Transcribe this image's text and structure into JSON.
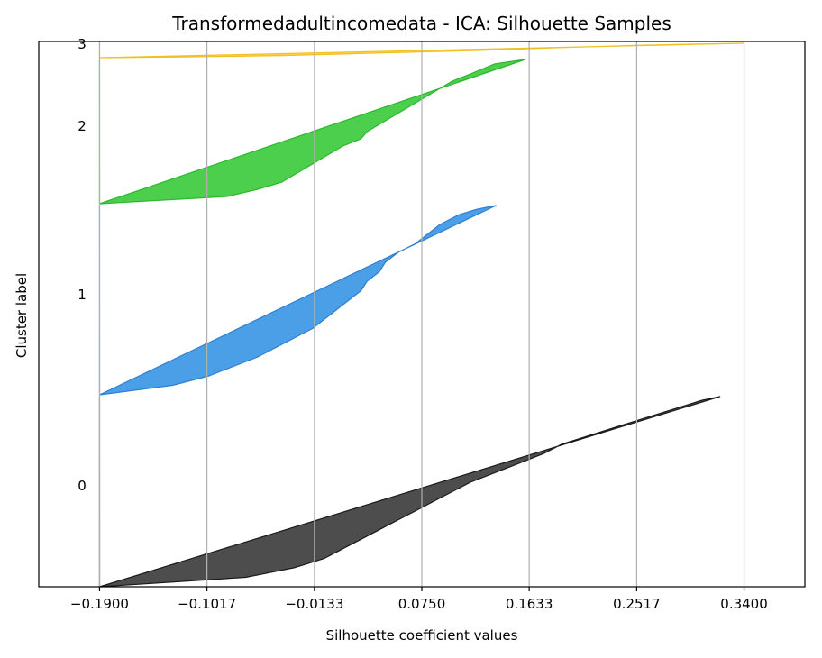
{
  "chart_data": {
    "type": "area",
    "title": "Transformedadultincomedata - ICA: Silhouette Samples",
    "xlabel": "Silhouette coefficient values",
    "ylabel": "Cluster label",
    "xlim": [
      -0.24,
      0.39
    ],
    "x_ticks": [
      -0.19,
      -0.1017,
      -0.0133,
      0.075,
      0.1633,
      0.2517,
      0.34
    ],
    "x_tick_labels": [
      "−0.1900",
      "−0.1017",
      "−0.0133",
      "0.0750",
      "0.1633",
      "0.2517",
      "0.3400"
    ],
    "grid": "vertical",
    "clusters": [
      {
        "label": "0",
        "color": "#4d4d4d",
        "edge_color": "#1a1a1a",
        "profile": [
          [
            0,
            0.32
          ],
          [
            0.02,
            0.305
          ],
          [
            0.05,
            0.29
          ],
          [
            0.1,
            0.265
          ],
          [
            0.15,
            0.24
          ],
          [
            0.2,
            0.215
          ],
          [
            0.25,
            0.19
          ],
          [
            0.3,
            0.175
          ],
          [
            0.35,
            0.155
          ],
          [
            0.4,
            0.135
          ],
          [
            0.45,
            0.115
          ],
          [
            0.5,
            0.1
          ],
          [
            0.55,
            0.085
          ],
          [
            0.6,
            0.07
          ],
          [
            0.65,
            0.055
          ],
          [
            0.7,
            0.04
          ],
          [
            0.75,
            0.025
          ],
          [
            0.8,
            0.01
          ],
          [
            0.85,
            -0.005
          ],
          [
            0.9,
            -0.03
          ],
          [
            0.95,
            -0.07
          ],
          [
            1,
            -0.19
          ]
        ]
      },
      {
        "label": "1",
        "color": "#4a9fe6",
        "edge_color": "#2f7fd0",
        "profile": [
          [
            0,
            0.136
          ],
          [
            0.02,
            0.12
          ],
          [
            0.05,
            0.105
          ],
          [
            0.1,
            0.09
          ],
          [
            0.15,
            0.08
          ],
          [
            0.2,
            0.07
          ],
          [
            0.25,
            0.055
          ],
          [
            0.3,
            0.045
          ],
          [
            0.35,
            0.04
          ],
          [
            0.4,
            0.03
          ],
          [
            0.45,
            0.025
          ],
          [
            0.5,
            0.015
          ],
          [
            0.55,
            0.005
          ],
          [
            0.6,
            -0.005
          ],
          [
            0.65,
            -0.015
          ],
          [
            0.7,
            -0.03
          ],
          [
            0.75,
            -0.045
          ],
          [
            0.8,
            -0.06
          ],
          [
            0.85,
            -0.08
          ],
          [
            0.9,
            -0.1
          ],
          [
            0.95,
            -0.13
          ],
          [
            1,
            -0.19
          ]
        ]
      },
      {
        "label": "2",
        "color": "#4ccf4c",
        "edge_color": "#2bb82b",
        "profile": [
          [
            0,
            0.16
          ],
          [
            0.03,
            0.135
          ],
          [
            0.1,
            0.115
          ],
          [
            0.15,
            0.1
          ],
          [
            0.2,
            0.09
          ],
          [
            0.25,
            0.08
          ],
          [
            0.3,
            0.07
          ],
          [
            0.35,
            0.06
          ],
          [
            0.4,
            0.05
          ],
          [
            0.45,
            0.04
          ],
          [
            0.5,
            0.03
          ],
          [
            0.55,
            0.025
          ],
          [
            0.6,
            0.01
          ],
          [
            0.65,
            0.0
          ],
          [
            0.7,
            -0.01
          ],
          [
            0.75,
            -0.02
          ],
          [
            0.8,
            -0.03
          ],
          [
            0.85,
            -0.04
          ],
          [
            0.9,
            -0.06
          ],
          [
            0.95,
            -0.085
          ],
          [
            1,
            -0.19
          ]
        ]
      },
      {
        "label": "3",
        "color": "#ffd447",
        "edge_color": "#f0c020",
        "profile": [
          [
            0,
            0.34
          ],
          [
            0.05,
            0.3
          ],
          [
            0.15,
            0.25
          ],
          [
            0.3,
            0.19
          ],
          [
            0.5,
            0.12
          ],
          [
            0.7,
            0.03
          ],
          [
            0.85,
            -0.04
          ],
          [
            0.95,
            -0.12
          ],
          [
            1,
            -0.19
          ]
        ]
      }
    ]
  }
}
